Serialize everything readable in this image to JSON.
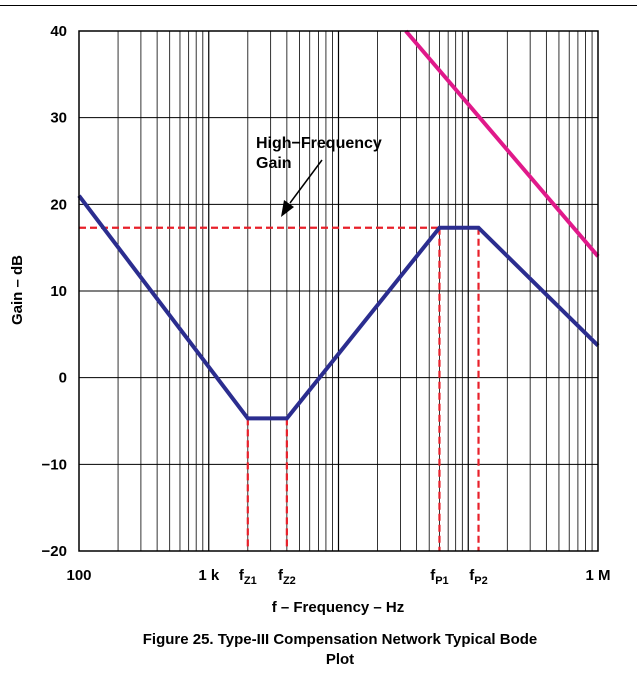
{
  "chart_data": {
    "type": "line",
    "x_scale": "log",
    "x_range": [
      100,
      1000000
    ],
    "y_range": [
      -20,
      40
    ],
    "grid": true,
    "ylabel": "Gain – dB",
    "xlabel": "f – Frequency – Hz",
    "y_ticks": [
      {
        "value": 40,
        "label": "40"
      },
      {
        "value": 30,
        "label": "30"
      },
      {
        "value": 20,
        "label": "20"
      },
      {
        "value": 10,
        "label": "10"
      },
      {
        "value": 0,
        "label": "0"
      },
      {
        "value": -10,
        "label": "−10"
      },
      {
        "value": -20,
        "label": "−20"
      }
    ],
    "x_ticks": [
      {
        "value": 100,
        "label": "100"
      },
      {
        "value": 1000,
        "label": "1 k"
      },
      {
        "value": 1000000,
        "label": "1 M"
      }
    ],
    "freq_markers": [
      {
        "value": 2000,
        "main": "f",
        "sub": "Z1"
      },
      {
        "value": 4000,
        "main": "f",
        "sub": "Z2"
      },
      {
        "value": 60000,
        "main": "f",
        "sub": "P1"
      },
      {
        "value": 120000,
        "main": "f",
        "sub": "P2"
      }
    ],
    "series": [
      {
        "color": "#2b2d8f",
        "points": [
          [
            100,
            21
          ],
          [
            2000,
            -4.7
          ],
          [
            4000,
            -4.7
          ],
          [
            60000,
            17.3
          ],
          [
            120000,
            17.3
          ],
          [
            1000000,
            3.7
          ]
        ]
      },
      {
        "color": "#e0198a",
        "points": [
          [
            33000,
            40
          ],
          [
            1000000,
            14
          ]
        ]
      }
    ],
    "hf_gain": 17.3,
    "annotation": {
      "line1": "High−Frequency",
      "line2": "Gain"
    },
    "dashed_color": "#e8202a"
  },
  "caption": {
    "line1": "Figure 25. Type-III Compensation Network Typical Bode",
    "line2": "Plot"
  }
}
